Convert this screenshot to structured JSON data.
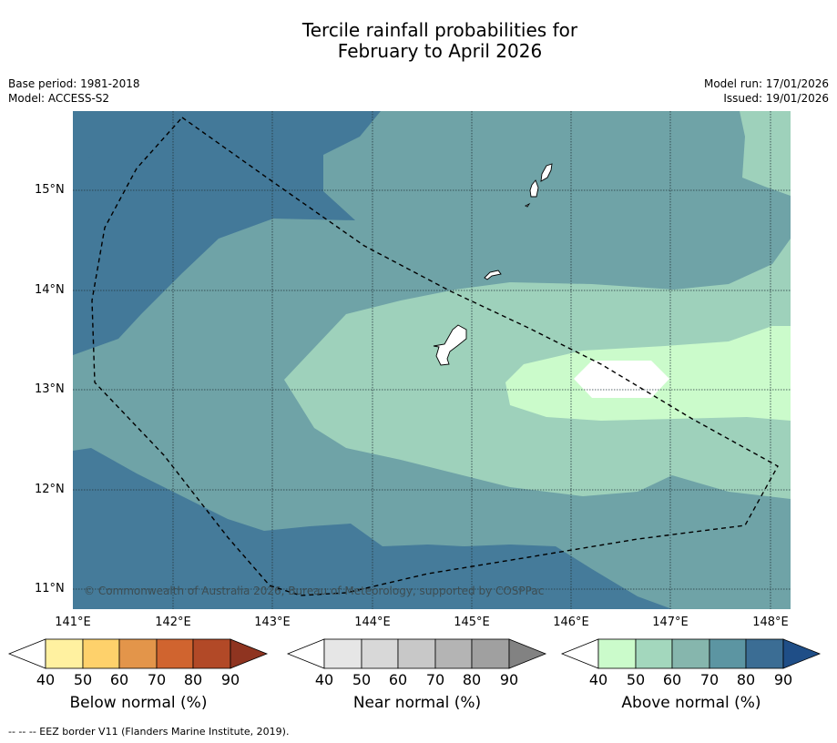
{
  "title_line1": "Tercile rainfall probabilities for",
  "title_line2": "February to April 2026",
  "meta_left": [
    "Base period: 1981-2018",
    "Model: ACCESS-S2"
  ],
  "meta_right": [
    "Model run: 17/01/2026",
    "Issued: 19/01/2026"
  ],
  "lat_labels": [
    "15°N",
    "14°N",
    "13°N",
    "12°N",
    "11°N"
  ],
  "lon_labels": [
    "141°E",
    "142°E",
    "143°E",
    "144°E",
    "145°E",
    "146°E",
    "147°E",
    "148°E"
  ],
  "copyright": "© Commonwealth of Australia 2026, Bureau of Meteorology, supported by COSPPac",
  "colorbars": [
    {
      "label": "Below normal (%)",
      "ticks": [
        "40",
        "50",
        "60",
        "70",
        "80",
        "90"
      ],
      "colors": [
        "#fff1a0",
        "#fed16b",
        "#e3954a",
        "#d0642f",
        "#b24927",
        "#8f3420"
      ]
    },
    {
      "label": "Near normal (%)",
      "ticks": [
        "40",
        "50",
        "60",
        "70",
        "80",
        "90"
      ],
      "colors": [
        "#e6e6e6",
        "#d8d8d8",
        "#c8c8c8",
        "#b4b4b4",
        "#a0a0a0",
        "#828282"
      ]
    },
    {
      "label": "Above normal (%)",
      "ticks": [
        "40",
        "50",
        "60",
        "70",
        "80",
        "90"
      ],
      "colors": [
        "#cbfbcb",
        "#a3d7bd",
        "#86b6ad",
        "#5c95a2",
        "#3b6d94",
        "#1f4e87"
      ]
    }
  ],
  "footnote": "--  --  -- EEZ border V11 (Flanders Marine Institute, 2019)."
}
